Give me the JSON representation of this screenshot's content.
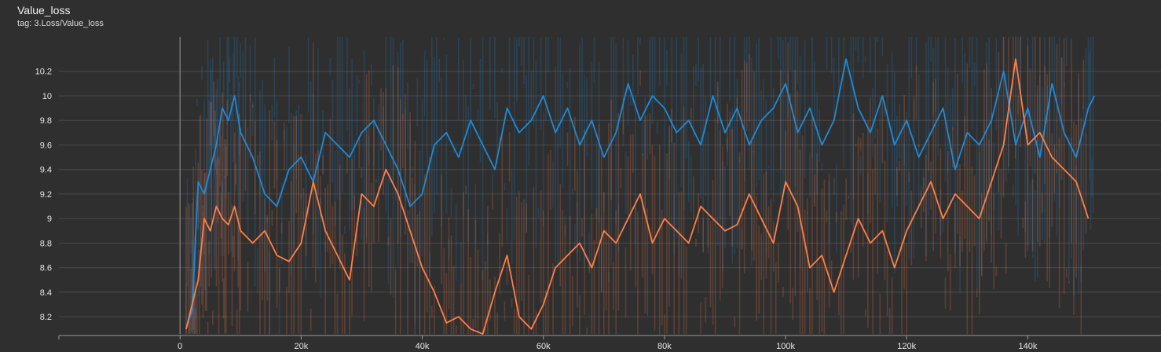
{
  "card": {
    "title": "Value_loss",
    "subtitle": "tag: 3.Loss/Value_loss"
  },
  "colors": {
    "background": "#2f2f2f",
    "grid": "#4a4a4a",
    "series_blue": "#1f8ad6",
    "series_orange": "#ff7f47"
  },
  "chart_data": {
    "type": "line",
    "title": "Value_loss",
    "subtitle": "tag: 3.Loss/Value_loss",
    "xlabel": "",
    "ylabel": "",
    "xlim": [
      -20000,
      162000
    ],
    "ylim": [
      8.06,
      10.48
    ],
    "grid": true,
    "x_ticks": [
      0,
      20000,
      40000,
      60000,
      80000,
      100000,
      120000,
      140000
    ],
    "x_tick_labels": [
      "0",
      "20k",
      "40k",
      "60k",
      "80k",
      "100k",
      "120k",
      "140k"
    ],
    "y_ticks": [
      8.2,
      8.4,
      8.6,
      8.8,
      9,
      9.2,
      9.4,
      9.6,
      9.8,
      10,
      10.2
    ],
    "y_tick_labels": [
      "8.2",
      "8.4",
      "8.6",
      "8.8",
      "9",
      "9.2",
      "9.4",
      "9.6",
      "9.8",
      "10",
      "10.2"
    ],
    "series": [
      {
        "color": "#1f8ad6",
        "x": [
          1000,
          2000,
          3000,
          4000,
          5000,
          6000,
          7000,
          8000,
          9000,
          10000,
          12000,
          14000,
          16000,
          18000,
          20000,
          22000,
          24000,
          26000,
          28000,
          30000,
          32000,
          34000,
          36000,
          38000,
          40000,
          42000,
          44000,
          46000,
          48000,
          50000,
          52000,
          54000,
          56000,
          58000,
          60000,
          62000,
          64000,
          66000,
          68000,
          70000,
          72000,
          74000,
          76000,
          78000,
          80000,
          82000,
          84000,
          86000,
          88000,
          90000,
          92000,
          94000,
          96000,
          98000,
          100000,
          102000,
          104000,
          106000,
          108000,
          110000,
          112000,
          114000,
          116000,
          118000,
          120000,
          122000,
          124000,
          126000,
          128000,
          130000,
          132000,
          134000,
          136000,
          138000,
          140000,
          142000,
          144000,
          146000,
          148000,
          150000,
          151000
        ],
        "y": [
          8.1,
          8.25,
          9.3,
          9.2,
          9.4,
          9.6,
          9.9,
          9.8,
          10.0,
          9.7,
          9.5,
          9.2,
          9.1,
          9.4,
          9.5,
          9.3,
          9.7,
          9.6,
          9.5,
          9.7,
          9.8,
          9.6,
          9.4,
          9.1,
          9.2,
          9.6,
          9.7,
          9.5,
          9.8,
          9.6,
          9.4,
          9.9,
          9.7,
          9.8,
          10.0,
          9.7,
          9.9,
          9.6,
          9.8,
          9.5,
          9.7,
          10.1,
          9.8,
          10.0,
          9.9,
          9.7,
          9.8,
          9.6,
          10.0,
          9.7,
          9.9,
          9.6,
          9.8,
          9.9,
          10.1,
          9.7,
          9.9,
          9.6,
          9.8,
          10.3,
          9.9,
          9.7,
          10.0,
          9.6,
          9.8,
          9.5,
          9.7,
          9.9,
          9.4,
          9.7,
          9.6,
          9.8,
          10.2,
          9.6,
          9.9,
          9.5,
          10.1,
          9.7,
          9.5,
          9.9,
          10.0
        ]
      },
      {
        "color": "#ff7f47",
        "x": [
          1000,
          2000,
          3000,
          4000,
          5000,
          6000,
          7000,
          8000,
          9000,
          10000,
          12000,
          14000,
          16000,
          18000,
          20000,
          22000,
          24000,
          26000,
          28000,
          30000,
          32000,
          34000,
          36000,
          38000,
          40000,
          42000,
          44000,
          46000,
          48000,
          50000,
          52000,
          54000,
          56000,
          58000,
          60000,
          62000,
          64000,
          66000,
          68000,
          70000,
          72000,
          74000,
          76000,
          78000,
          80000,
          82000,
          84000,
          86000,
          88000,
          90000,
          92000,
          94000,
          96000,
          98000,
          100000,
          102000,
          104000,
          106000,
          108000,
          110000,
          112000,
          114000,
          116000,
          118000,
          120000,
          122000,
          124000,
          126000,
          128000,
          130000,
          132000,
          134000,
          136000,
          138000,
          140000,
          142000,
          144000,
          146000,
          148000,
          150000
        ],
        "y": [
          8.1,
          8.3,
          8.5,
          9.0,
          8.9,
          9.1,
          9.0,
          8.95,
          9.1,
          8.9,
          8.8,
          8.9,
          8.7,
          8.65,
          8.8,
          9.3,
          8.9,
          8.7,
          8.5,
          9.2,
          9.1,
          9.4,
          9.2,
          8.9,
          8.6,
          8.4,
          8.15,
          8.2,
          8.1,
          8.05,
          8.4,
          8.7,
          8.2,
          8.1,
          8.3,
          8.6,
          8.7,
          8.8,
          8.6,
          8.9,
          8.8,
          9.0,
          9.2,
          8.8,
          9.0,
          8.9,
          8.8,
          9.1,
          9.0,
          8.9,
          8.95,
          9.2,
          9.0,
          8.8,
          9.3,
          9.1,
          8.6,
          8.7,
          8.4,
          8.7,
          9.0,
          8.8,
          8.9,
          8.6,
          8.9,
          9.1,
          9.3,
          9.0,
          9.2,
          9.1,
          9.0,
          9.3,
          9.6,
          10.3,
          9.6,
          9.7,
          9.5,
          9.4,
          9.3,
          9.0
        ]
      }
    ]
  }
}
